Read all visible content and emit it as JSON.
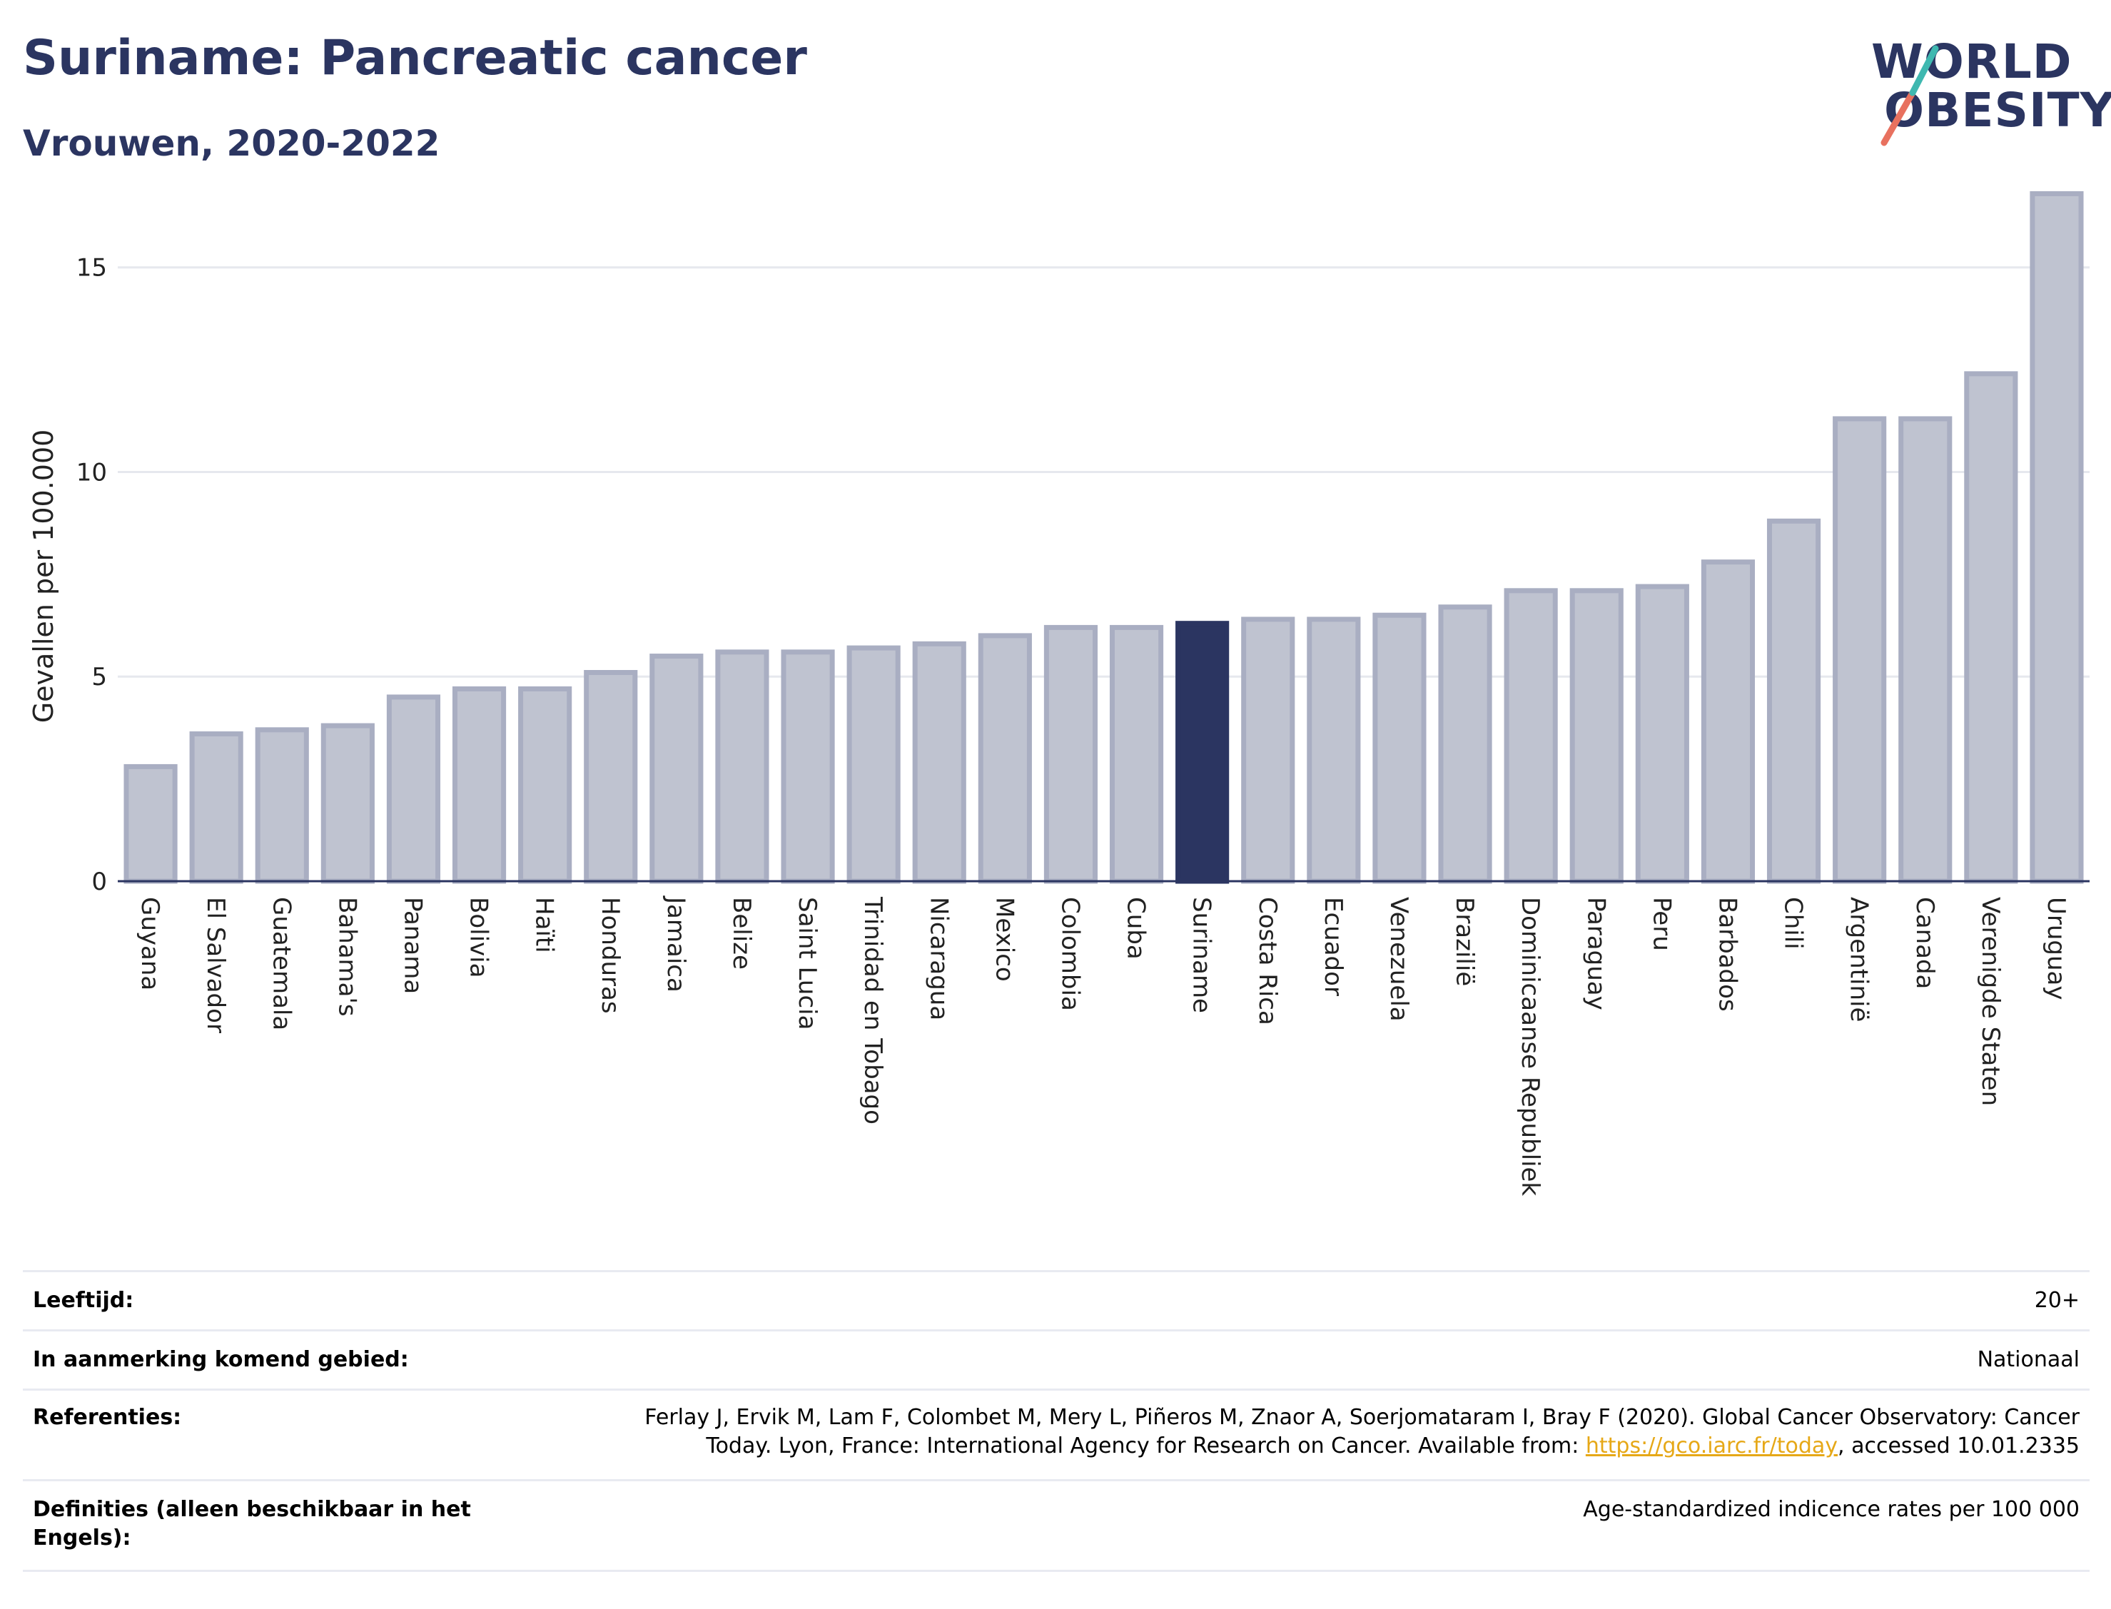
{
  "header": {
    "title": "Suriname: Pancreatic cancer",
    "subtitle": "Vrouwen, 2020-2022"
  },
  "logo": {
    "line1": "WORLD",
    "line2": "OBESITY"
  },
  "chart_data": {
    "type": "bar",
    "ylabel": "Gevallen per 100.000",
    "xlabel": "",
    "ylim": [
      0,
      17
    ],
    "yticks": [
      0,
      5,
      10,
      15
    ],
    "highlight": "Suriname",
    "colors": {
      "bar": "#bfc3d0",
      "bar_edge": "#a9aec2",
      "highlight": "#2b3561",
      "grid": "#e6e8ee",
      "axis": "#2b3561"
    },
    "categories": [
      "Guyana",
      "El Salvador",
      "Guatemala",
      "Bahama's",
      "Panama",
      "Bolivia",
      "Haïti",
      "Honduras",
      "Jamaica",
      "Belize",
      "Saint Lucia",
      "Trinidad en Tobago",
      "Nicaragua",
      "Mexico",
      "Colombia",
      "Cuba",
      "Suriname",
      "Costa Rica",
      "Ecuador",
      "Venezuela",
      "Brazilië",
      "Dominicaanse Republiek",
      "Paraguay",
      "Peru",
      "Barbados",
      "Chili",
      "Argentinië",
      "Canada",
      "Verenigde Staten",
      "Uruguay"
    ],
    "values": [
      2.8,
      3.6,
      3.7,
      3.8,
      4.5,
      4.7,
      4.7,
      5.1,
      5.5,
      5.6,
      5.6,
      5.7,
      5.8,
      6.0,
      6.2,
      6.2,
      6.3,
      6.4,
      6.4,
      6.5,
      6.7,
      7.1,
      7.1,
      7.2,
      7.8,
      8.8,
      11.3,
      11.3,
      12.4,
      16.8
    ]
  },
  "info": {
    "age_label": "Leeftijd:",
    "age_value": "20+",
    "area_label": "In aanmerking komend gebied:",
    "area_value": "Nationaal",
    "ref_label": "Referenties:",
    "ref_line1": "Ferlay J, Ervik M, Lam F, Colombet M, Mery L, Piñeros M, Znaor A, Soerjomataram I, Bray F (2020). Global Cancer Observatory: Cancer",
    "ref_line2a": "Today. Lyon, France: International Agency for Research on Cancer. Available from: ",
    "ref_link": "https://gco.iarc.fr/today",
    "ref_line2b": ", accessed 10.01.2335",
    "def_label": "Definities (alleen beschikbaar in het Engels):",
    "def_value": "Age-standardized indicence rates per 100 000"
  }
}
